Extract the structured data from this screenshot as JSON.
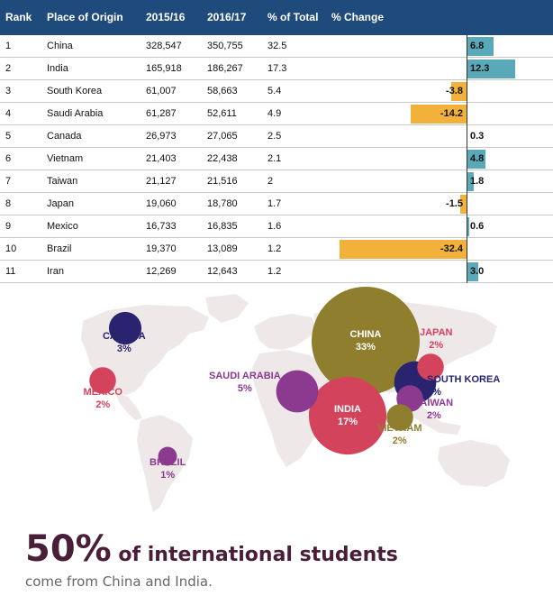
{
  "colors": {
    "header_bg": "#1f4a7c",
    "positive": "#5aa9b9",
    "negative": "#f2b13b",
    "map_land": "#efe8e9",
    "headline": "#4a1e38"
  },
  "table": {
    "headers": {
      "rank": "Rank",
      "origin": "Place of Origin",
      "y1": "2015/16",
      "y2": "2016/17",
      "share": "% of Total",
      "change": "% Change"
    }
  },
  "chart_data": [
    {
      "type": "table",
      "columns": [
        "Rank",
        "Place of Origin",
        "2015/16",
        "2016/17",
        "% of Total",
        "% Change"
      ],
      "rows": [
        {
          "rank": "1",
          "country": "China",
          "y1": "328,547",
          "y2": "350,755",
          "share": "32.5",
          "change": 6.8
        },
        {
          "rank": "2",
          "country": "India",
          "y1": "165,918",
          "y2": "186,267",
          "share": "17.3",
          "change": 12.3
        },
        {
          "rank": "3",
          "country": "South Korea",
          "y1": "61,007",
          "y2": "58,663",
          "share": "5.4",
          "change": -3.8
        },
        {
          "rank": "4",
          "country": "Saudi Arabia",
          "y1": "61,287",
          "y2": "52,611",
          "share": "4.9",
          "change": -14.2
        },
        {
          "rank": "5",
          "country": "Canada",
          "y1": "26,973",
          "y2": "27,065",
          "share": "2.5",
          "change": 0.3
        },
        {
          "rank": "6",
          "country": "Vietnam",
          "y1": "21,403",
          "y2": "22,438",
          "share": "2.1",
          "change": 4.8
        },
        {
          "rank": "7",
          "country": "Taiwan",
          "y1": "21,127",
          "y2": "21,516",
          "share": "2",
          "change": 1.8
        },
        {
          "rank": "8",
          "country": "Japan",
          "y1": "19,060",
          "y2": "18,780",
          "share": "1.7",
          "change": -1.5
        },
        {
          "rank": "9",
          "country": "Mexico",
          "y1": "16,733",
          "y2": "16,835",
          "share": "1.6",
          "change": 0.6
        },
        {
          "rank": "10",
          "country": "Brazil",
          "y1": "19,370",
          "y2": "13,089",
          "share": "1.2",
          "change": -32.4
        },
        {
          "rank": "11",
          "country": "Iran",
          "y1": "12,269",
          "y2": "12,643",
          "share": "1.2",
          "change": 3.0
        }
      ]
    },
    {
      "type": "scatter",
      "description_type": "bubble map",
      "bubbles": [
        {
          "name": "CHINA",
          "pct": "33%",
          "value": 33,
          "color": "#8f7e2e",
          "label_color": "#ffffff"
        },
        {
          "name": "INDIA",
          "pct": "17%",
          "value": 17,
          "color": "#d4435c",
          "label_color": "#ffffff"
        },
        {
          "name": "SOUTH KOREA",
          "pct": "5%",
          "value": 5,
          "color": "#2a2470",
          "label_color": "#2a2470"
        },
        {
          "name": "SAUDI ARABIA",
          "pct": "5%",
          "value": 5,
          "color": "#8b3a8f",
          "label_color": "#8b3a8f"
        },
        {
          "name": "CANADA",
          "pct": "3%",
          "value": 3,
          "color": "#2a2470",
          "label_color": "#2a2470"
        },
        {
          "name": "JAPAN",
          "pct": "2%",
          "value": 2,
          "color": "#d4435c",
          "label_color": "#d4435c"
        },
        {
          "name": "TAIWAN",
          "pct": "2%",
          "value": 2,
          "color": "#8b3a8f",
          "label_color": "#8b3a8f"
        },
        {
          "name": "VIETNAM",
          "pct": "2%",
          "value": 2,
          "color": "#8f7e2e",
          "label_color": "#8f7e2e"
        },
        {
          "name": "MEXICO",
          "pct": "2%",
          "value": 2,
          "color": "#d4435c",
          "label_color": "#d4435c"
        },
        {
          "name": "BRAZIL",
          "pct": "1%",
          "value": 1,
          "color": "#8b3a8f",
          "label_color": "#8b3a8f"
        }
      ]
    }
  ],
  "footer": {
    "big_stat": "50%",
    "headline": " of international students",
    "subline": "come from China and India."
  }
}
